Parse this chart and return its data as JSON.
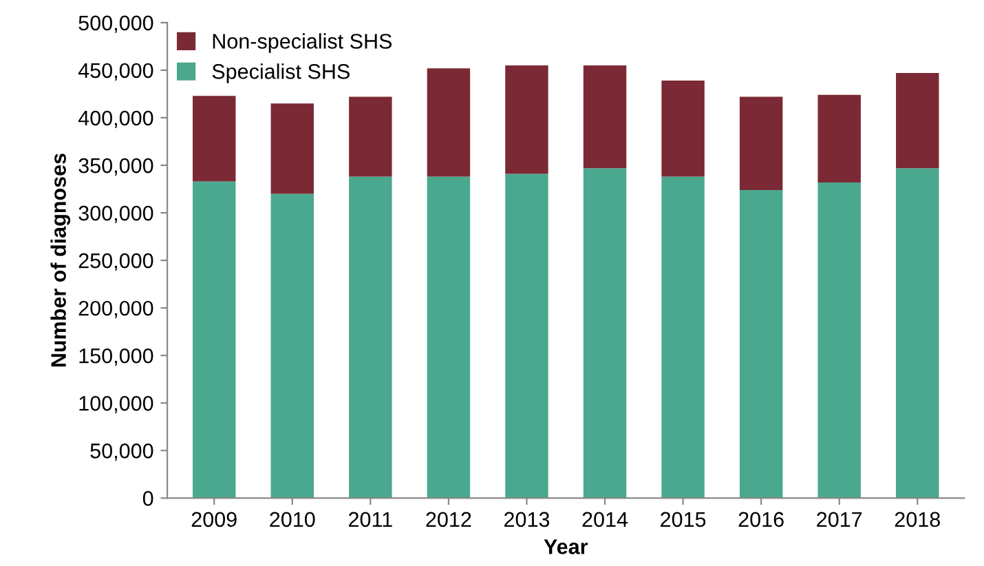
{
  "chart_data": {
    "type": "bar",
    "stacked": true,
    "xlabel": "Year",
    "ylabel": "Number of diagnoses",
    "categories": [
      "2009",
      "2010",
      "2011",
      "2012",
      "2013",
      "2014",
      "2015",
      "2016",
      "2017",
      "2018"
    ],
    "series": [
      {
        "name": "Specialist SHS",
        "color": "#4aa88e",
        "values": [
          333000,
          320000,
          338000,
          338000,
          341000,
          347000,
          338000,
          324000,
          332000,
          347000
        ]
      },
      {
        "name": "Non-specialist SHS",
        "color": "#7b2a35",
        "values": [
          90000,
          95000,
          84000,
          114000,
          114000,
          108000,
          101000,
          98000,
          92000,
          100000
        ]
      }
    ],
    "ylim": [
      0,
      500000
    ],
    "yticks": [
      {
        "value": 0,
        "label": "0"
      },
      {
        "value": 50000,
        "label": "50,000"
      },
      {
        "value": 100000,
        "label": "100,000"
      },
      {
        "value": 150000,
        "label": "150,000"
      },
      {
        "value": 200000,
        "label": "200,000"
      },
      {
        "value": 250000,
        "label": "250,000"
      },
      {
        "value": 300000,
        "label": "300,000"
      },
      {
        "value": 350000,
        "label": "350,000"
      },
      {
        "value": 400000,
        "label": "400,000"
      },
      {
        "value": 450000,
        "label": "450,000"
      },
      {
        "value": 500000,
        "label": "500,000"
      }
    ],
    "legend": "top left",
    "grid": false
  }
}
